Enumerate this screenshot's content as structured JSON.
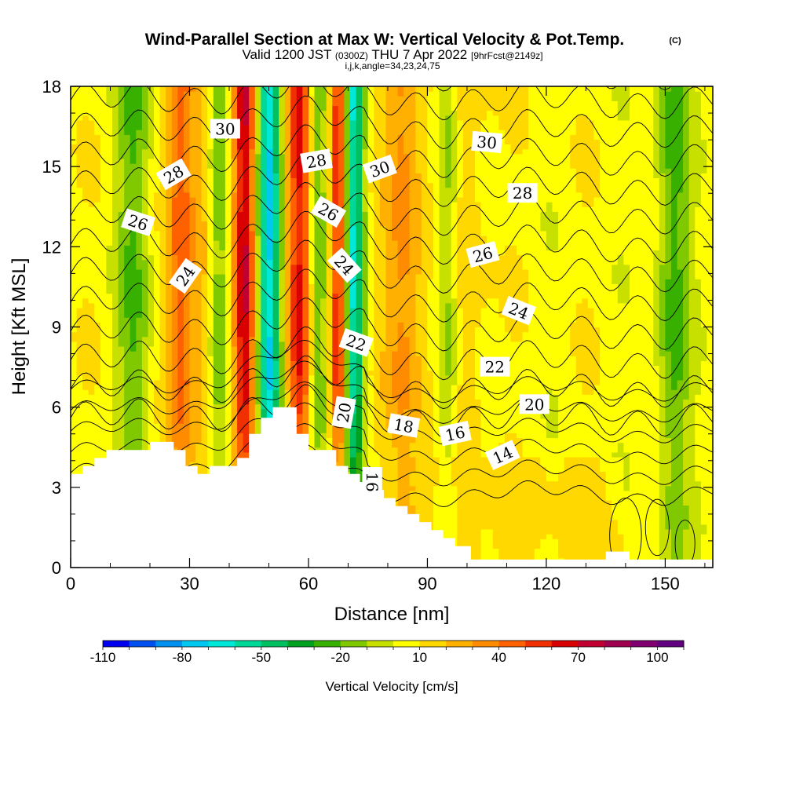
{
  "chart_data": {
    "type": "heatmap",
    "title": "Wind-Parallel Section at Max W: Vertical Velocity & Pot.Temp.",
    "title_mark": "(C)",
    "subtitle_valid": "Valid 1200 JST",
    "subtitle_utc": "(0300Z)",
    "subtitle_date": "THU 7 Apr 2022",
    "subtitle_fcst": "[9hrFcst@2149z]",
    "subtitle_ijk": "i,j,k,angle=34,23,24,75",
    "xlabel": "Distance [nm]",
    "ylabel": "Height [Kft MSL]",
    "xlim": [
      0,
      162
    ],
    "ylim": [
      0,
      18
    ],
    "xticks": [
      0,
      30,
      60,
      90,
      120,
      150
    ],
    "yticks": [
      0,
      3,
      6,
      9,
      12,
      15,
      18
    ],
    "colorbar": {
      "label": "Vertical Velocity [cm/s]",
      "range": [
        -110,
        110
      ],
      "tick_labels": [
        "-110",
        "-80",
        "-50",
        "-20",
        "10",
        "40",
        "70",
        "100"
      ],
      "tick_values": [
        -110,
        -80,
        -50,
        -20,
        10,
        40,
        70,
        100
      ],
      "colors": [
        "#0000f0",
        "#0050f0",
        "#0090f0",
        "#00c8f0",
        "#00e8d8",
        "#00d898",
        "#00c060",
        "#00a020",
        "#38b000",
        "#80c800",
        "#c8e000",
        "#ffff00",
        "#ffd800",
        "#ffb000",
        "#ff8c00",
        "#ff6000",
        "#f03000",
        "#d80000",
        "#c00030",
        "#a00050",
        "#800070",
        "#600080"
      ]
    },
    "contour_labels": [
      {
        "text": "30",
        "x": 39,
        "y": 16.4,
        "angle": 0
      },
      {
        "text": "28",
        "x": 26,
        "y": 14.7,
        "angle": -30
      },
      {
        "text": "26",
        "x": 17,
        "y": 12.9,
        "angle": 18
      },
      {
        "text": "24",
        "x": 29,
        "y": 10.9,
        "angle": -55
      },
      {
        "text": "30",
        "x": 105,
        "y": 15.9,
        "angle": 5
      },
      {
        "text": "28",
        "x": 114,
        "y": 14.0,
        "angle": 0
      },
      {
        "text": "28",
        "x": 62,
        "y": 15.2,
        "angle": -10
      },
      {
        "text": "30",
        "x": 78,
        "y": 14.9,
        "angle": -20
      },
      {
        "text": "26",
        "x": 65,
        "y": 13.3,
        "angle": 30
      },
      {
        "text": "24",
        "x": 69,
        "y": 11.3,
        "angle": 48
      },
      {
        "text": "26",
        "x": 104,
        "y": 11.7,
        "angle": -15
      },
      {
        "text": "24",
        "x": 113,
        "y": 9.6,
        "angle": 22
      },
      {
        "text": "22",
        "x": 72,
        "y": 8.4,
        "angle": 20
      },
      {
        "text": "22",
        "x": 107,
        "y": 7.5,
        "angle": 0
      },
      {
        "text": "20",
        "x": 117,
        "y": 6.1,
        "angle": 0
      },
      {
        "text": "20",
        "x": 69,
        "y": 5.8,
        "angle": -80
      },
      {
        "text": "18",
        "x": 84,
        "y": 5.3,
        "angle": 10
      },
      {
        "text": "16",
        "x": 97,
        "y": 5.0,
        "angle": -12
      },
      {
        "text": "14",
        "x": 109,
        "y": 4.2,
        "angle": -25
      },
      {
        "text": "16",
        "x": 76,
        "y": 3.2,
        "angle": 90
      }
    ],
    "updraft_bands": [
      {
        "x": 28,
        "w": 2.5,
        "amp": 40
      },
      {
        "x": 34,
        "w": 2.0,
        "amp": 25
      },
      {
        "x": 44,
        "w": 2.2,
        "amp": 65
      },
      {
        "x": 58,
        "w": 2.5,
        "amp": 55
      },
      {
        "x": 68,
        "w": 1.8,
        "amp": 75
      },
      {
        "x": 84,
        "w": 3.5,
        "amp": 30
      },
      {
        "x": 100,
        "w": 4.0,
        "amp": 12
      }
    ],
    "downdraft_bands": [
      {
        "x": 16,
        "w": 3.0,
        "amp": -25
      },
      {
        "x": 37,
        "w": 2.5,
        "amp": -30
      },
      {
        "x": 50,
        "w": 2.2,
        "amp": -75
      },
      {
        "x": 62,
        "w": 2.0,
        "amp": -35
      },
      {
        "x": 71,
        "w": 2.0,
        "amp": -80
      },
      {
        "x": 95,
        "w": 2.0,
        "amp": -25
      },
      {
        "x": 152,
        "w": 3.0,
        "amp": -30
      }
    ],
    "terrain_kft": [
      [
        0,
        3.5
      ],
      [
        3,
        3.5
      ],
      [
        3,
        3.8
      ],
      [
        6,
        3.8
      ],
      [
        6,
        4.1
      ],
      [
        9,
        4.1
      ],
      [
        9,
        4.4
      ],
      [
        20,
        4.4
      ],
      [
        20,
        4.7
      ],
      [
        26,
        4.7
      ],
      [
        26,
        4.4
      ],
      [
        29,
        4.4
      ],
      [
        29,
        3.8
      ],
      [
        32,
        3.8
      ],
      [
        32,
        3.5
      ],
      [
        35,
        3.5
      ],
      [
        35,
        3.8
      ],
      [
        42,
        3.8
      ],
      [
        42,
        4.1
      ],
      [
        45,
        4.1
      ],
      [
        45,
        5.0
      ],
      [
        48,
        5.0
      ],
      [
        48,
        5.6
      ],
      [
        51,
        5.6
      ],
      [
        51,
        6.0
      ],
      [
        57,
        6.0
      ],
      [
        57,
        5.0
      ],
      [
        60,
        5.0
      ],
      [
        60,
        4.4
      ],
      [
        67,
        4.4
      ],
      [
        67,
        3.8
      ],
      [
        70,
        3.8
      ],
      [
        70,
        3.5
      ],
      [
        73,
        3.5
      ],
      [
        73,
        3.2
      ],
      [
        76,
        3.2
      ],
      [
        76,
        2.9
      ],
      [
        79,
        2.9
      ],
      [
        79,
        2.6
      ],
      [
        82,
        2.6
      ],
      [
        82,
        2.3
      ],
      [
        85,
        2.3
      ],
      [
        85,
        2.0
      ],
      [
        88,
        2.0
      ],
      [
        88,
        1.7
      ],
      [
        91,
        1.7
      ],
      [
        91,
        1.4
      ],
      [
        94,
        1.4
      ],
      [
        94,
        1.1
      ],
      [
        97,
        1.1
      ],
      [
        97,
        0.8
      ],
      [
        101,
        0.8
      ],
      [
        101,
        0.3
      ],
      [
        135,
        0.3
      ],
      [
        135,
        0.6
      ],
      [
        141,
        0.6
      ],
      [
        141,
        0.3
      ],
      [
        162,
        0.3
      ]
    ]
  }
}
